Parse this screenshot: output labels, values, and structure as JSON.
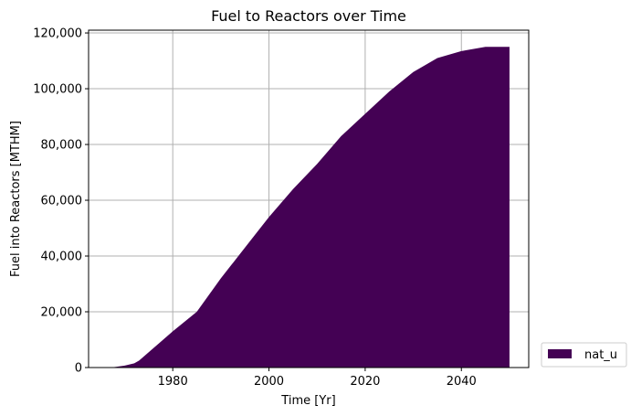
{
  "chart_data": {
    "type": "area",
    "title": "Fuel to Reactors over Time",
    "xlabel": "Time [Yr]",
    "ylabel": "Fuel into Reactors [MTHM]",
    "xlim": [
      1962.5,
      2054
    ],
    "ylim": [
      0,
      121000
    ],
    "x_ticks": [
      1980,
      2000,
      2020,
      2040
    ],
    "y_ticks": [
      0,
      20000,
      40000,
      60000,
      80000,
      100000,
      120000
    ],
    "y_tick_labels": [
      "0",
      "20,000",
      "40,000",
      "60,000",
      "80,000",
      "100,000",
      "120,000"
    ],
    "grid": true,
    "legend_position": "outside-bottom-right",
    "series": [
      {
        "name": "nat_u",
        "color": "#440154",
        "x": [
          1967,
          1968,
          1970,
          1972,
          1973,
          1975,
          1977,
          1980,
          1985,
          1990,
          1995,
          2000,
          2005,
          2010,
          2015,
          2020,
          2025,
          2030,
          2033,
          2035,
          2040,
          2045,
          2050
        ],
        "values": [
          0,
          200,
          700,
          1500,
          2500,
          5500,
          8500,
          13000,
          20000,
          32000,
          43000,
          54000,
          64000,
          73000,
          83000,
          91000,
          99000,
          106000,
          109000,
          111000,
          113500,
          115000,
          115000
        ]
      }
    ]
  }
}
